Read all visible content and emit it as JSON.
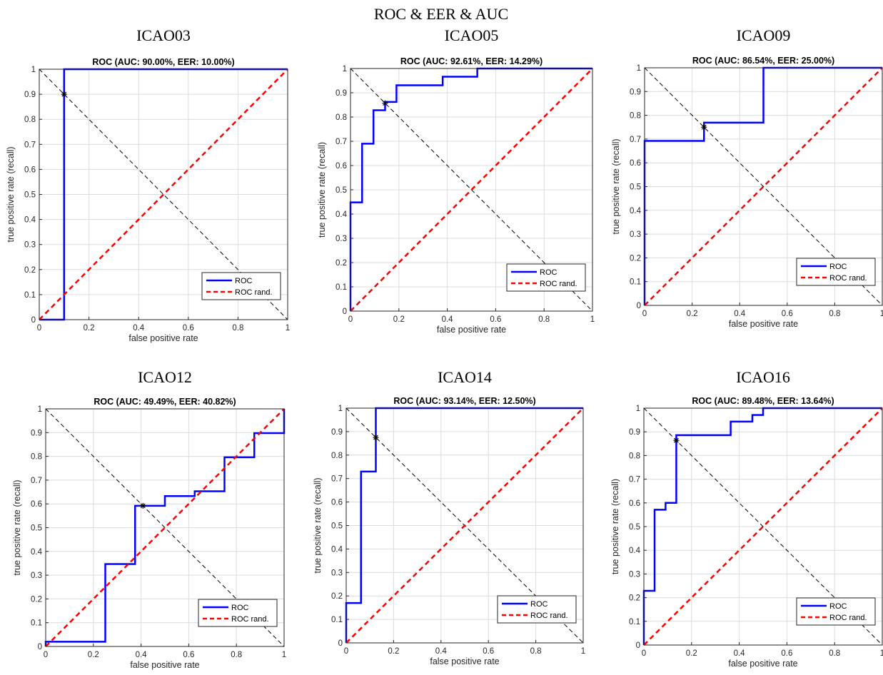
{
  "figure_title": "ROC & EER & AUC",
  "colors": {
    "roc": "#0000ff",
    "random": "#ff0000",
    "eer_line": "#000000",
    "grid": "#dcdcdc",
    "axis": "#262626"
  },
  "chart_data": [
    {
      "panel_title": "ICAO03",
      "type": "line",
      "title": "ROC (AUC: 90.00%, EER: 10.00%)",
      "xlabel": "false positive rate",
      "ylabel": "true positive rate (recall)",
      "xlim": [
        0,
        1
      ],
      "ylim": [
        0,
        1
      ],
      "xticks": [
        "0",
        "0.2",
        "0.4",
        "0.6",
        "0.8",
        "1"
      ],
      "yticks": [
        "0",
        "0.1",
        "0.2",
        "0.3",
        "0.4",
        "0.5",
        "0.6",
        "0.7",
        "0.8",
        "0.9",
        "1"
      ],
      "grid": true,
      "legend": {
        "position": "bottom-right",
        "entries": [
          "ROC",
          "ROC rand."
        ]
      },
      "series": [
        {
          "name": "ROC",
          "x": [
            0,
            0.1,
            0.1,
            1
          ],
          "y": [
            0,
            0,
            1,
            1
          ]
        },
        {
          "name": "ROC rand.",
          "x": [
            0,
            1
          ],
          "y": [
            0,
            1
          ]
        }
      ],
      "eer_diagonal": {
        "x": [
          0,
          1
        ],
        "y": [
          1,
          0
        ]
      },
      "eer_point": {
        "x": 0.1,
        "y": 0.9
      }
    },
    {
      "panel_title": "ICAO05",
      "type": "line",
      "title": "ROC (AUC: 92.61%, EER: 14.29%)",
      "xlabel": "false positive rate",
      "ylabel": "true positive rate (recall)",
      "xlim": [
        0,
        1
      ],
      "ylim": [
        0,
        1
      ],
      "xticks": [
        "0",
        "0.2",
        "0.4",
        "0.6",
        "0.8",
        "1"
      ],
      "yticks": [
        "0",
        "0.1",
        "0.2",
        "0.3",
        "0.4",
        "0.5",
        "0.6",
        "0.7",
        "0.8",
        "0.9",
        "1"
      ],
      "grid": true,
      "legend": {
        "position": "bottom-right",
        "entries": [
          "ROC",
          "ROC rand."
        ]
      },
      "series": [
        {
          "name": "ROC",
          "x": [
            0,
            0,
            0.048,
            0.048,
            0.095,
            0.095,
            0.143,
            0.143,
            0.19,
            0.19,
            0.381,
            0.381,
            0.524,
            0.524,
            1
          ],
          "y": [
            0,
            0.448,
            0.448,
            0.69,
            0.69,
            0.828,
            0.828,
            0.862,
            0.862,
            0.931,
            0.931,
            0.966,
            0.966,
            1,
            1
          ]
        },
        {
          "name": "ROC rand.",
          "x": [
            0,
            1
          ],
          "y": [
            0,
            1
          ]
        }
      ],
      "eer_diagonal": {
        "x": [
          0,
          1
        ],
        "y": [
          1,
          0
        ]
      },
      "eer_point": {
        "x": 0.143,
        "y": 0.857
      }
    },
    {
      "panel_title": "ICAO09",
      "type": "line",
      "title": "ROC (AUC: 86.54%, EER: 25.00%)",
      "xlabel": "false positive rate",
      "ylabel": "true positive rate (recall)",
      "xlim": [
        0,
        1
      ],
      "ylim": [
        0,
        1
      ],
      "xticks": [
        "0",
        "0.2",
        "0.4",
        "0.6",
        "0.8",
        "1"
      ],
      "yticks": [
        "0",
        "0.1",
        "0.2",
        "0.3",
        "0.4",
        "0.5",
        "0.6",
        "0.7",
        "0.8",
        "0.9",
        "1"
      ],
      "grid": true,
      "legend": {
        "position": "bottom-right",
        "entries": [
          "ROC",
          "ROC rand."
        ]
      },
      "series": [
        {
          "name": "ROC",
          "x": [
            0,
            0,
            0.25,
            0.25,
            0.5,
            0.5,
            1
          ],
          "y": [
            0,
            0.692,
            0.692,
            0.769,
            0.769,
            1,
            1
          ]
        },
        {
          "name": "ROC rand.",
          "x": [
            0,
            1
          ],
          "y": [
            0,
            1
          ]
        }
      ],
      "eer_diagonal": {
        "x": [
          0,
          1
        ],
        "y": [
          1,
          0
        ]
      },
      "eer_point": {
        "x": 0.25,
        "y": 0.75
      }
    },
    {
      "panel_title": "ICAO12",
      "type": "line",
      "title": "ROC (AUC: 49.49%, EER: 40.82%)",
      "xlabel": "false positive rate",
      "ylabel": "true positive rate (recall)",
      "xlim": [
        0,
        1
      ],
      "ylim": [
        0,
        1
      ],
      "xticks": [
        "0",
        "0.2",
        "0.4",
        "0.6",
        "0.8",
        "1"
      ],
      "yticks": [
        "0",
        "0.1",
        "0.2",
        "0.3",
        "0.4",
        "0.5",
        "0.6",
        "0.7",
        "0.8",
        "0.9",
        "1"
      ],
      "grid": true,
      "legend": {
        "position": "bottom-right",
        "entries": [
          "ROC",
          "ROC rand."
        ]
      },
      "series": [
        {
          "name": "ROC",
          "x": [
            0,
            0,
            0.25,
            0.25,
            0.375,
            0.375,
            0.5,
            0.5,
            0.625,
            0.625,
            0.75,
            0.75,
            0.875,
            0.875,
            1,
            1
          ],
          "y": [
            0,
            0.02,
            0.02,
            0.347,
            0.347,
            0.592,
            0.592,
            0.633,
            0.633,
            0.653,
            0.653,
            0.796,
            0.796,
            0.898,
            0.898,
            1
          ]
        },
        {
          "name": "ROC rand.",
          "x": [
            0,
            1
          ],
          "y": [
            0,
            1
          ]
        }
      ],
      "eer_diagonal": {
        "x": [
          0,
          1
        ],
        "y": [
          1,
          0
        ]
      },
      "eer_point": {
        "x": 0.408,
        "y": 0.592
      }
    },
    {
      "panel_title": "ICAO14",
      "type": "line",
      "title": "ROC (AUC: 93.14%, EER: 12.50%)",
      "xlabel": "false positive rate",
      "ylabel": "true positive rate (recall)",
      "xlim": [
        0,
        1
      ],
      "ylim": [
        0,
        1
      ],
      "xticks": [
        "0",
        "0.2",
        "0.4",
        "0.6",
        "0.8",
        "1"
      ],
      "yticks": [
        "0",
        "0.1",
        "0.2",
        "0.3",
        "0.4",
        "0.5",
        "0.6",
        "0.7",
        "0.8",
        "0.9",
        "1"
      ],
      "grid": true,
      "legend": {
        "position": "bottom-right",
        "entries": [
          "ROC",
          "ROC rand."
        ]
      },
      "series": [
        {
          "name": "ROC",
          "x": [
            0,
            0,
            0.0625,
            0.0625,
            0.125,
            0.125,
            1
          ],
          "y": [
            0,
            0.17,
            0.17,
            0.73,
            0.73,
            1,
            1
          ]
        },
        {
          "name": "ROC rand.",
          "x": [
            0,
            1
          ],
          "y": [
            0,
            1
          ]
        }
      ],
      "eer_diagonal": {
        "x": [
          0,
          1
        ],
        "y": [
          1,
          0
        ]
      },
      "eer_point": {
        "x": 0.125,
        "y": 0.875
      }
    },
    {
      "panel_title": "ICAO16",
      "type": "line",
      "title": "ROC (AUC: 89.48%, EER: 13.64%)",
      "xlabel": "false positive rate",
      "ylabel": "true positive rate (recall)",
      "xlim": [
        0,
        1
      ],
      "ylim": [
        0,
        1
      ],
      "xticks": [
        "0",
        "0.2",
        "0.4",
        "0.6",
        "0.8",
        "1"
      ],
      "yticks": [
        "0",
        "0.1",
        "0.2",
        "0.3",
        "0.4",
        "0.5",
        "0.6",
        "0.7",
        "0.8",
        "0.9",
        "1"
      ],
      "grid": true,
      "legend": {
        "position": "bottom-right",
        "entries": [
          "ROC",
          "ROC rand."
        ]
      },
      "series": [
        {
          "name": "ROC",
          "x": [
            0,
            0,
            0.045,
            0.045,
            0.091,
            0.091,
            0.136,
            0.136,
            0.364,
            0.364,
            0.455,
            0.455,
            0.5,
            0.5,
            1
          ],
          "y": [
            0,
            0.229,
            0.229,
            0.571,
            0.571,
            0.6,
            0.6,
            0.886,
            0.886,
            0.943,
            0.943,
            0.971,
            0.971,
            1,
            1
          ]
        },
        {
          "name": "ROC rand.",
          "x": [
            0,
            1
          ],
          "y": [
            0,
            1
          ]
        }
      ],
      "eer_diagonal": {
        "x": [
          0,
          1
        ],
        "y": [
          1,
          0
        ]
      },
      "eer_point": {
        "x": 0.136,
        "y": 0.864
      }
    }
  ]
}
